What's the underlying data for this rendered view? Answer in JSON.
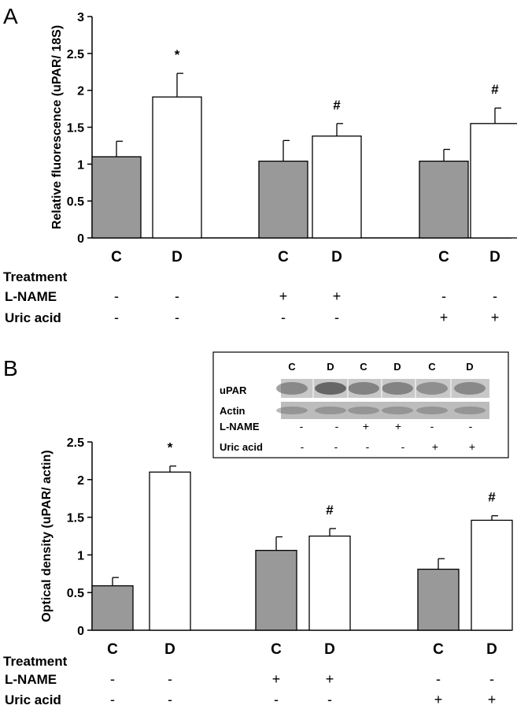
{
  "chart_data": [
    {
      "panel": "A",
      "type": "bar",
      "ylabel": "Relative fluorescence (uPAR/ 18S)",
      "ylim": [
        0,
        3
      ],
      "yticks": [
        "0",
        "0.5",
        "1",
        "1.5",
        "2",
        "2.5",
        "3"
      ],
      "categories": [
        "C",
        "D",
        "C",
        "D",
        "C",
        "D"
      ],
      "bar_colors": [
        "#999999",
        "#ffffff",
        "#999999",
        "#ffffff",
        "#999999",
        "#ffffff"
      ],
      "values": [
        1.1,
        1.91,
        1.04,
        1.38,
        1.04,
        1.55
      ],
      "errors": [
        0.21,
        0.32,
        0.28,
        0.17,
        0.16,
        0.21
      ],
      "significance": [
        "",
        "*",
        "",
        "#",
        "",
        "#"
      ],
      "treatment_rows": [
        {
          "label": "Treatment",
          "signs": [
            "",
            "",
            "",
            "",
            "",
            ""
          ]
        },
        {
          "label": "L-NAME",
          "signs": [
            "-",
            "-",
            "+",
            "+",
            "-",
            "-"
          ]
        },
        {
          "label": "Uric acid",
          "signs": [
            "-",
            "-",
            "-",
            "-",
            "+",
            "+"
          ]
        }
      ]
    },
    {
      "panel": "B",
      "type": "bar",
      "ylabel": "Optical density (uPAR/ actin)",
      "ylim": [
        0,
        2.5
      ],
      "yticks": [
        "0",
        "0.5",
        "1",
        "1.5",
        "2",
        "2.5"
      ],
      "categories": [
        "C",
        "D",
        "C",
        "D",
        "C",
        "D"
      ],
      "bar_colors": [
        "#999999",
        "#ffffff",
        "#999999",
        "#ffffff",
        "#999999",
        "#ffffff"
      ],
      "values": [
        0.59,
        2.1,
        1.06,
        1.25,
        0.81,
        1.46
      ],
      "errors": [
        0.11,
        0.08,
        0.18,
        0.1,
        0.14,
        0.06
      ],
      "significance": [
        "",
        "*",
        "",
        "#",
        "",
        "#"
      ],
      "treatment_rows": [
        {
          "label": "Treatment",
          "signs": [
            "",
            "",
            "",
            "",
            "",
            ""
          ]
        },
        {
          "label": "L-NAME",
          "signs": [
            "-",
            "-",
            "+",
            "+",
            "-",
            "-"
          ]
        },
        {
          "label": "Uric acid",
          "signs": [
            "-",
            "-",
            "-",
            "-",
            "+",
            "+"
          ]
        }
      ],
      "inset_blot": {
        "lanes": [
          "C",
          "D",
          "C",
          "D",
          "C",
          "D"
        ],
        "rows": [
          "uPAR",
          "Actin"
        ],
        "l_name": [
          "-",
          "-",
          "+",
          "+",
          "-",
          "-"
        ],
        "uric_acid": [
          "-",
          "-",
          "-",
          "-",
          "+",
          "+"
        ],
        "l_name_label": "L-NAME",
        "uric_acid_label": "Uric acid"
      }
    }
  ]
}
